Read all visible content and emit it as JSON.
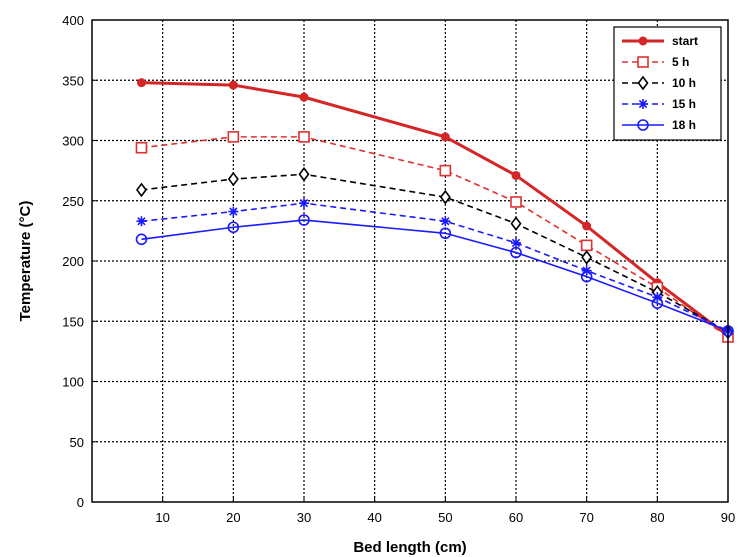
{
  "chart_data": {
    "type": "line",
    "xlabel": "Bed length (cm)",
    "ylabel": "Temperature (°C)",
    "xlim": [
      0,
      90
    ],
    "ylim": [
      0,
      400
    ],
    "xticks": [
      10,
      20,
      30,
      40,
      50,
      60,
      70,
      80,
      90
    ],
    "yticks": [
      0,
      50,
      100,
      150,
      200,
      250,
      300,
      350,
      400
    ],
    "grid": true,
    "legend_position": "top-right",
    "x": [
      7,
      20,
      30,
      50,
      60,
      70,
      80,
      90
    ],
    "series": [
      {
        "name": "start",
        "color": "#d42626",
        "dash": "solid",
        "marker": "filled-circle",
        "values": [
          348,
          346,
          336,
          303,
          271,
          229,
          182,
          138
        ]
      },
      {
        "name": "5 h",
        "color": "#e03030",
        "dash": "dashed",
        "marker": "open-square",
        "values": [
          294,
          303,
          303,
          275,
          249,
          213,
          178,
          137
        ]
      },
      {
        "name": "10 h",
        "color": "#000000",
        "dash": "dashed",
        "marker": "open-diamond",
        "values": [
          259,
          268,
          272,
          253,
          231,
          203,
          174,
          141
        ]
      },
      {
        "name": "15 h",
        "color": "#1a1aff",
        "dash": "dashed",
        "marker": "star",
        "values": [
          233,
          241,
          248,
          233,
          215,
          192,
          170,
          142
        ]
      },
      {
        "name": "18 h",
        "color": "#1a1aff",
        "dash": "solid",
        "marker": "open-circle",
        "values": [
          218,
          228,
          234,
          223,
          207,
          187,
          165,
          142
        ]
      }
    ]
  }
}
